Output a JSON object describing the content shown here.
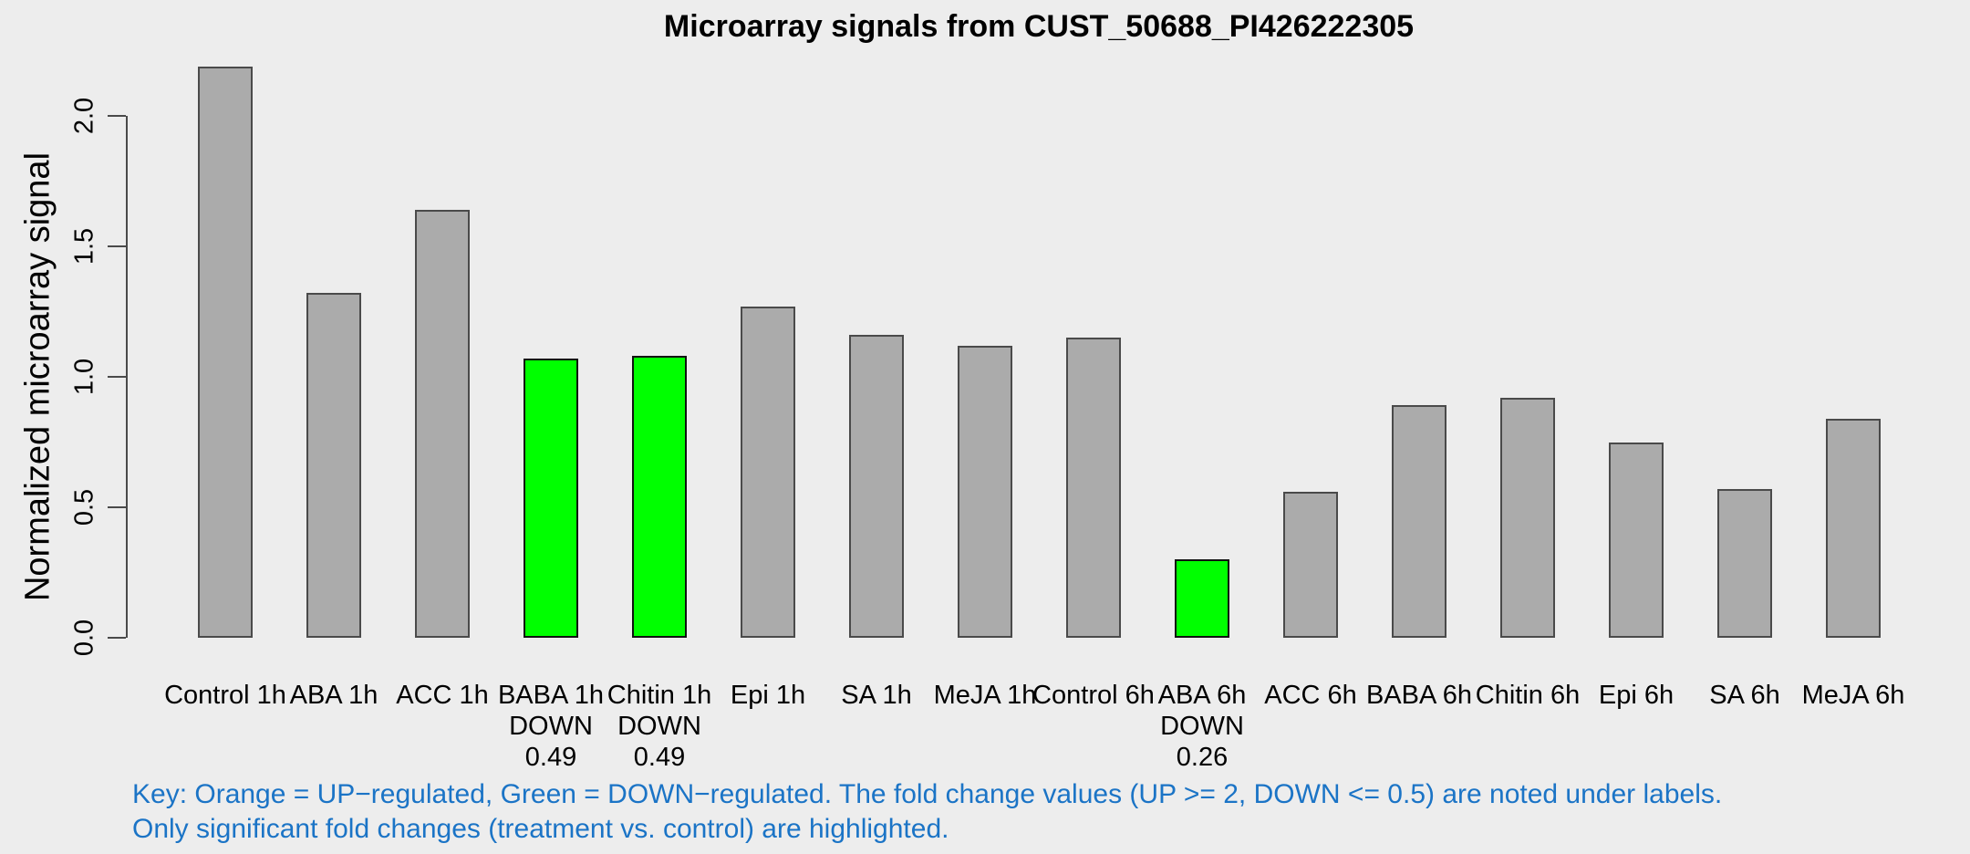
{
  "chart_data": {
    "type": "bar",
    "title": "Microarray signals from CUST_50688_PI426222305",
    "ylabel": "Normalized microarray signal",
    "xlabel": "",
    "ylim": [
      0,
      2.2
    ],
    "yticks": [
      0.0,
      0.5,
      1.0,
      1.5,
      2.0
    ],
    "ytick_labels": [
      "0.0",
      "0.5",
      "1.0",
      "1.5",
      "2.0"
    ],
    "grid": false,
    "legend": "none",
    "bars": [
      {
        "label": "Control 1h",
        "value": 2.19,
        "highlight": "none",
        "note": []
      },
      {
        "label": "ABA 1h",
        "value": 1.32,
        "highlight": "none",
        "note": []
      },
      {
        "label": "ACC 1h",
        "value": 1.64,
        "highlight": "none",
        "note": []
      },
      {
        "label": "BABA 1h",
        "value": 1.07,
        "highlight": "down",
        "note": [
          "DOWN",
          "0.49"
        ]
      },
      {
        "label": "Chitin 1h",
        "value": 1.08,
        "highlight": "down",
        "note": [
          "DOWN",
          "0.49"
        ]
      },
      {
        "label": "Epi 1h",
        "value": 1.27,
        "highlight": "none",
        "note": []
      },
      {
        "label": "SA 1h",
        "value": 1.16,
        "highlight": "none",
        "note": []
      },
      {
        "label": "MeJA 1h",
        "value": 1.12,
        "highlight": "none",
        "note": []
      },
      {
        "label": "Control 6h",
        "value": 1.15,
        "highlight": "none",
        "note": []
      },
      {
        "label": "ABA 6h",
        "value": 0.3,
        "highlight": "down",
        "note": [
          "DOWN",
          "0.26"
        ]
      },
      {
        "label": "ACC 6h",
        "value": 0.56,
        "highlight": "none",
        "note": []
      },
      {
        "label": "BABA 6h",
        "value": 0.89,
        "highlight": "none",
        "note": []
      },
      {
        "label": "Chitin 6h",
        "value": 0.92,
        "highlight": "none",
        "note": []
      },
      {
        "label": "Epi 6h",
        "value": 0.75,
        "highlight": "none",
        "note": []
      },
      {
        "label": "SA 6h",
        "value": 0.57,
        "highlight": "none",
        "note": []
      },
      {
        "label": "MeJA 6h",
        "value": 0.84,
        "highlight": "none",
        "note": []
      }
    ],
    "colors": {
      "bar_default": "#ABABAB",
      "bar_down": "#00FF00",
      "bar_up": "#FFA500",
      "key_text": "#1B74C6"
    }
  },
  "footer": {
    "key_line1": "Key: Orange = UP−regulated, Green = DOWN−regulated. The fold change values (UP >= 2, DOWN <= 0.5) are noted under labels.",
    "key_line2": "Only significant fold changes (treatment vs. control) are highlighted."
  }
}
